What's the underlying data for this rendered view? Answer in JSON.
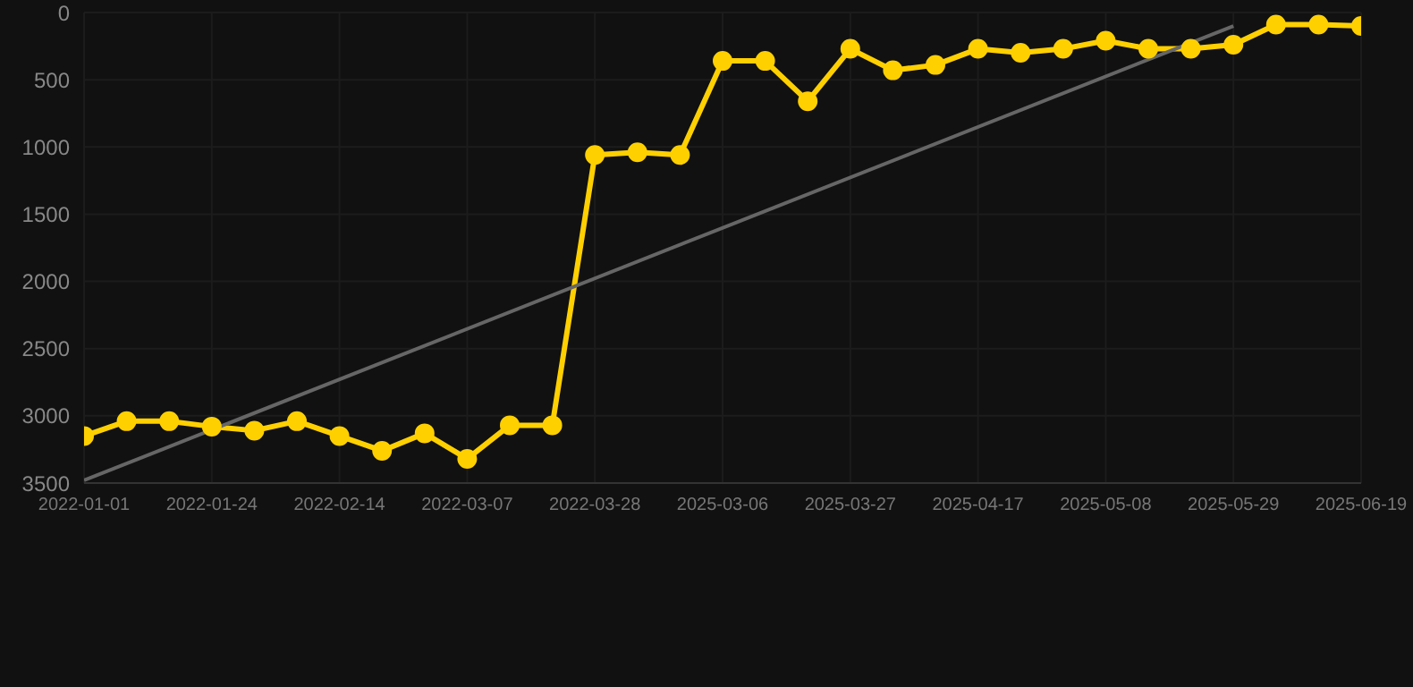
{
  "chart_data": {
    "type": "line",
    "categories": [
      "2022-01-01",
      null,
      null,
      "2022-01-24",
      null,
      null,
      "2022-02-14",
      null,
      null,
      "2022-03-07",
      null,
      null,
      "2022-03-28",
      null,
      null,
      "2025-03-06",
      null,
      null,
      "2025-03-27",
      null,
      null,
      "2025-04-17",
      null,
      null,
      "2025-05-08",
      null,
      null,
      "2025-05-29",
      null,
      null,
      "2025-06-19"
    ],
    "series": [
      {
        "color": "#ffd000",
        "marker": "circle",
        "values": [
          3150,
          3040,
          3040,
          3080,
          3110,
          3040,
          3150,
          3260,
          3130,
          3320,
          3070,
          3070,
          1060,
          1040,
          1060,
          360,
          360,
          660,
          270,
          430,
          390,
          270,
          300,
          270,
          210,
          270,
          270,
          240,
          90,
          90,
          100
        ]
      },
      {
        "type": "line",
        "color": "#666666",
        "marker": "none",
        "values": [
          3480,
          null,
          null,
          null,
          null,
          null,
          null,
          null,
          null,
          null,
          null,
          null,
          null,
          null,
          null,
          null,
          null,
          null,
          null,
          null,
          null,
          null,
          null,
          null,
          null,
          null,
          null,
          100,
          null,
          null,
          null
        ]
      }
    ],
    "ylim": [
      3500,
      0
    ],
    "yticks": [
      0,
      500,
      1000,
      1500,
      2000,
      2500,
      3000,
      3500
    ],
    "grid": true
  }
}
